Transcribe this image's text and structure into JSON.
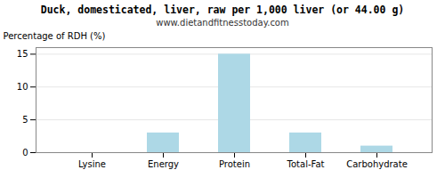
{
  "chart_data": {
    "type": "bar",
    "title": "Duck, domesticated, liver, raw per 1,000 liver (or 44.00 g)",
    "subtitle": "www.dietandfitnesstoday.com",
    "categories": [
      "Lysine",
      "Energy",
      "Protein",
      "Total-Fat",
      "Carbohydrate"
    ],
    "values": [
      0,
      3,
      15,
      3,
      1
    ],
    "color": "#add8e6",
    "ylabel": "Percentage of RDH (%)",
    "ylim": [
      0,
      16
    ],
    "yticks": [
      0,
      5,
      10,
      15
    ],
    "grid": true
  }
}
